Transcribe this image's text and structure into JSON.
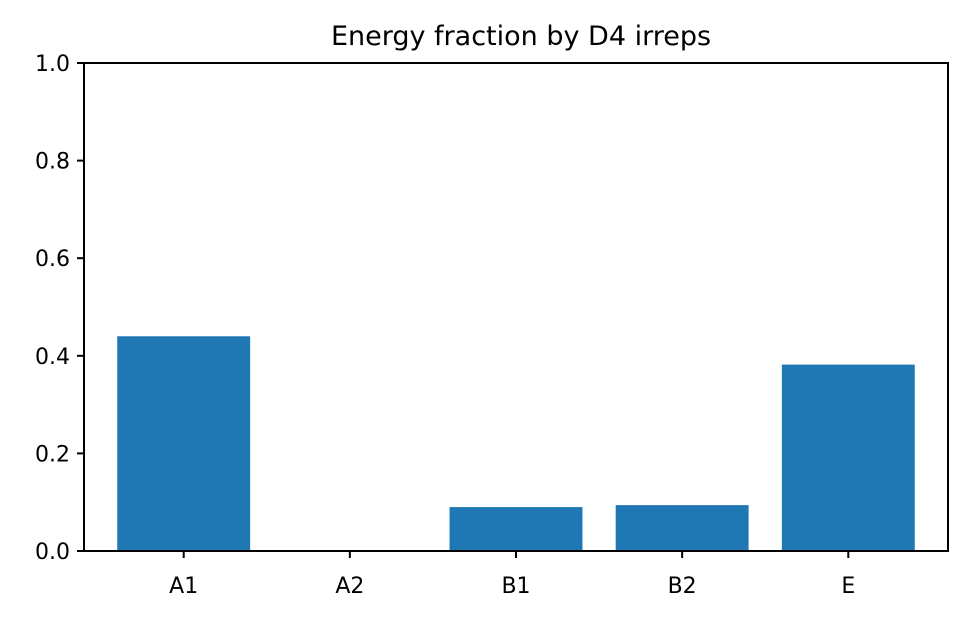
{
  "chart_data": {
    "type": "bar",
    "title": "Energy fraction by D4 irreps",
    "xlabel": "",
    "ylabel": "",
    "categories": [
      "A1",
      "A2",
      "B1",
      "B2",
      "E"
    ],
    "values": [
      0.44,
      0.0,
      0.09,
      0.094,
      0.382
    ],
    "ylim": [
      0,
      1.0
    ],
    "yticks": [
      0.0,
      0.2,
      0.4,
      0.6,
      0.8,
      1.0
    ],
    "ytick_labels": [
      "0.0",
      "0.2",
      "0.4",
      "0.6",
      "0.8",
      "1.0"
    ],
    "grid": false,
    "legend": "none",
    "bar_color": "#1f77b4"
  }
}
